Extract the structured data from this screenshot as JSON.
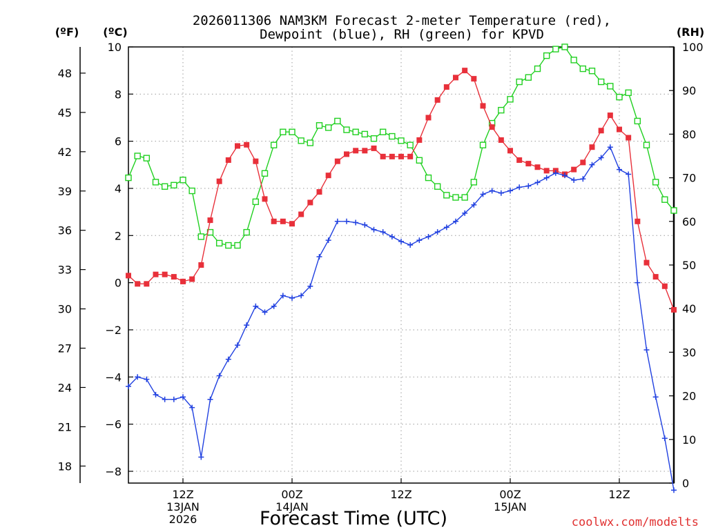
{
  "chart_data": {
    "type": "line",
    "title_line1": "2026011306 NAM3KM Forecast 2-meter Temperature (red),",
    "title_line2": "Dewpoint (blue), RH (green) for KPVD",
    "xlabel": "Forecast Time (UTC)",
    "credit": "coolwx.com/modelts",
    "unit_labels": {
      "fahrenheit": "(ºF)",
      "celsius": "(ºC)",
      "rh": "(RH)"
    },
    "colors": {
      "temperature": "#e8303a",
      "dewpoint": "#2040e0",
      "rh": "#20d020",
      "grid": "#9a9a9a"
    },
    "x_range_hours": [
      0,
      60
    ],
    "x_ticks": [
      {
        "hour": 6,
        "label": "12Z",
        "date": "13JAN",
        "year": "2026"
      },
      {
        "hour": 18,
        "label": "00Z",
        "date": "14JAN",
        "year": ""
      },
      {
        "hour": 30,
        "label": "12Z",
        "date": "",
        "year": ""
      },
      {
        "hour": 42,
        "label": "00Z",
        "date": "15JAN",
        "year": ""
      },
      {
        "hour": 54,
        "label": "12Z",
        "date": "",
        "year": ""
      }
    ],
    "celsius_axis": {
      "min": -8.5,
      "max": 10,
      "ticks": [
        10,
        8,
        6,
        4,
        2,
        0,
        -2,
        -4,
        -6,
        -8
      ]
    },
    "celsius_tick_labels": [
      "10",
      "8",
      "6",
      "4",
      "2",
      "0",
      "−2",
      "−4",
      "−6",
      "−8"
    ],
    "fahrenheit_ticks": [
      48,
      45,
      42,
      39,
      36,
      33,
      30,
      27,
      24,
      21,
      18
    ],
    "rh_axis": {
      "min": 0,
      "max": 100,
      "ticks": [
        100,
        90,
        80,
        70,
        60,
        50,
        40,
        30,
        20,
        10,
        0
      ]
    },
    "series": [
      {
        "name": "Temperature",
        "unit": "C",
        "marker": "filled-square",
        "values": [
          0.3,
          -0.05,
          -0.05,
          0.35,
          0.35,
          0.25,
          0.05,
          0.15,
          0.75,
          2.65,
          4.3,
          5.2,
          5.8,
          5.85,
          5.15,
          3.55,
          2.6,
          2.6,
          2.5,
          2.9,
          3.4,
          3.85,
          4.55,
          5.15,
          5.45,
          5.6,
          5.6,
          5.7,
          5.35,
          5.35,
          5.35,
          5.35,
          6.05,
          7.0,
          7.75,
          8.3,
          8.7,
          9.0,
          8.65,
          7.5,
          6.6,
          6.05,
          5.6,
          5.2,
          5.05,
          4.9,
          4.75,
          4.75,
          4.6,
          4.8,
          5.1,
          5.75,
          6.45,
          7.1,
          6.5,
          6.15,
          2.6,
          0.85,
          0.25,
          -0.15,
          -1.15
        ]
      },
      {
        "name": "Dewpoint",
        "unit": "C",
        "marker": "plus",
        "values": [
          -4.4,
          -4.0,
          -4.1,
          -4.75,
          -4.95,
          -4.95,
          -4.85,
          -5.3,
          -7.4,
          -4.95,
          -3.95,
          -3.25,
          -2.65,
          -1.8,
          -1.0,
          -1.25,
          -1.0,
          -0.55,
          -0.65,
          -0.55,
          -0.15,
          1.1,
          1.8,
          2.6,
          2.6,
          2.55,
          2.45,
          2.25,
          2.15,
          1.95,
          1.75,
          1.6,
          1.8,
          1.95,
          2.15,
          2.35,
          2.6,
          2.95,
          3.3,
          3.75,
          3.9,
          3.8,
          3.9,
          4.05,
          4.1,
          4.25,
          4.45,
          4.65,
          4.55,
          4.35,
          4.4,
          5.0,
          5.3,
          5.75,
          4.8,
          4.6,
          0.0,
          -2.85,
          -4.85,
          -6.6,
          -8.8
        ]
      },
      {
        "name": "RH",
        "unit": "%",
        "marker": "open-square",
        "values": [
          70,
          75,
          74.5,
          69,
          68,
          68.3,
          69.5,
          67,
          56.5,
          57.5,
          55,
          54.5,
          54.5,
          57.5,
          64.5,
          71,
          77.5,
          80.5,
          80.5,
          78.5,
          78,
          82,
          81.5,
          83,
          81,
          80.5,
          80,
          79,
          80.5,
          79.5,
          78.5,
          77.5,
          74,
          70,
          68,
          66,
          65.5,
          65.5,
          69,
          77.5,
          82.5,
          85.5,
          88,
          92,
          93,
          95,
          98,
          99.5,
          100,
          97,
          95,
          94.5,
          92,
          91,
          88.5,
          89.5,
          83,
          77.5,
          69,
          65,
          62.5
        ]
      }
    ]
  }
}
